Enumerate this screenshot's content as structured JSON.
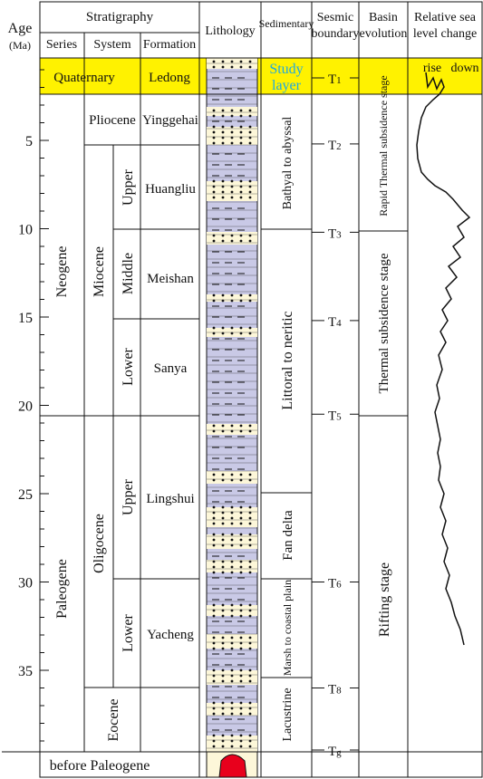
{
  "headers": {
    "age": "Age",
    "age_unit": "(Ma)",
    "stratigraphy": "Stratigraphy",
    "series": "Series",
    "system": "System",
    "formation": "Formation",
    "lithology": "Lithology",
    "sedimentary": "Sedimentary",
    "sesmic_line1": "Sesmic",
    "sesmic_line2": "boundary",
    "basin_line1": "Basin",
    "basin_line2": "evolution",
    "sea_line1": "Relative sea",
    "sea_line2": "level change"
  },
  "age_ticks": [
    "5",
    "10",
    "15",
    "20",
    "25",
    "30",
    "35"
  ],
  "quaternary": {
    "series": "Quaternary",
    "formation": "Ledong",
    "study_line1": "Study",
    "study_line2": "layer"
  },
  "series_labels": {
    "neogene": "Neogene",
    "paleogene": "Paleogene"
  },
  "system_labels": {
    "pliocene": "Pliocene",
    "miocene": "Miocene",
    "oligocene": "Oligocene",
    "eocene": "Eocene"
  },
  "subdivision_labels": {
    "upper_mio": "Upper",
    "middle_mio": "Middle",
    "lower_mio": "Lower",
    "upper_oli": "Upper",
    "lower_oli": "Lower"
  },
  "formation_labels": {
    "yinggehai": "Yinggehai",
    "huangliu": "Huangliu",
    "meishan": "Meishan",
    "sanya": "Sanya",
    "lingshui": "Lingshui",
    "yacheng": "Yacheng"
  },
  "sedimentary_labels": {
    "bathyal": "Bathyal to abyssal",
    "littoral": "Littoral to neritic",
    "fan": "Fan delta",
    "marsh": "Marsh to coastal plain",
    "lacustrine": "Lacustrine"
  },
  "seismic_boundaries": [
    {
      "main": "T",
      "sub": "1",
      "age": 1.0
    },
    {
      "main": "T",
      "sub": "2",
      "age": 5.2
    },
    {
      "main": "T",
      "sub": "3",
      "age": 10.2
    },
    {
      "main": "T",
      "sub": "4",
      "age": 15.2
    },
    {
      "main": "T",
      "sub": "5",
      "age": 20.5
    },
    {
      "main": "T",
      "sub": "6",
      "age": 30.0
    },
    {
      "main": "T",
      "sub": "8",
      "age": 36.0
    },
    {
      "main": "T",
      "sub": "g",
      "age": 40.0
    }
  ],
  "basin_labels": {
    "rapid": "Rapid Thermal  subsidence stage",
    "thermal": "Thermal  subsidence stage",
    "rifting": "Rifting stage"
  },
  "sea_level": {
    "rise": "rise",
    "down": "down"
  },
  "footer": {
    "before_paleogene": "before Paleogene"
  },
  "colors": {
    "highlight": "#fff200",
    "study_text": "#1fa8e0",
    "clay": "#c9c9e6",
    "sand": "#fdf7d9",
    "basement": "#e8001c"
  }
}
